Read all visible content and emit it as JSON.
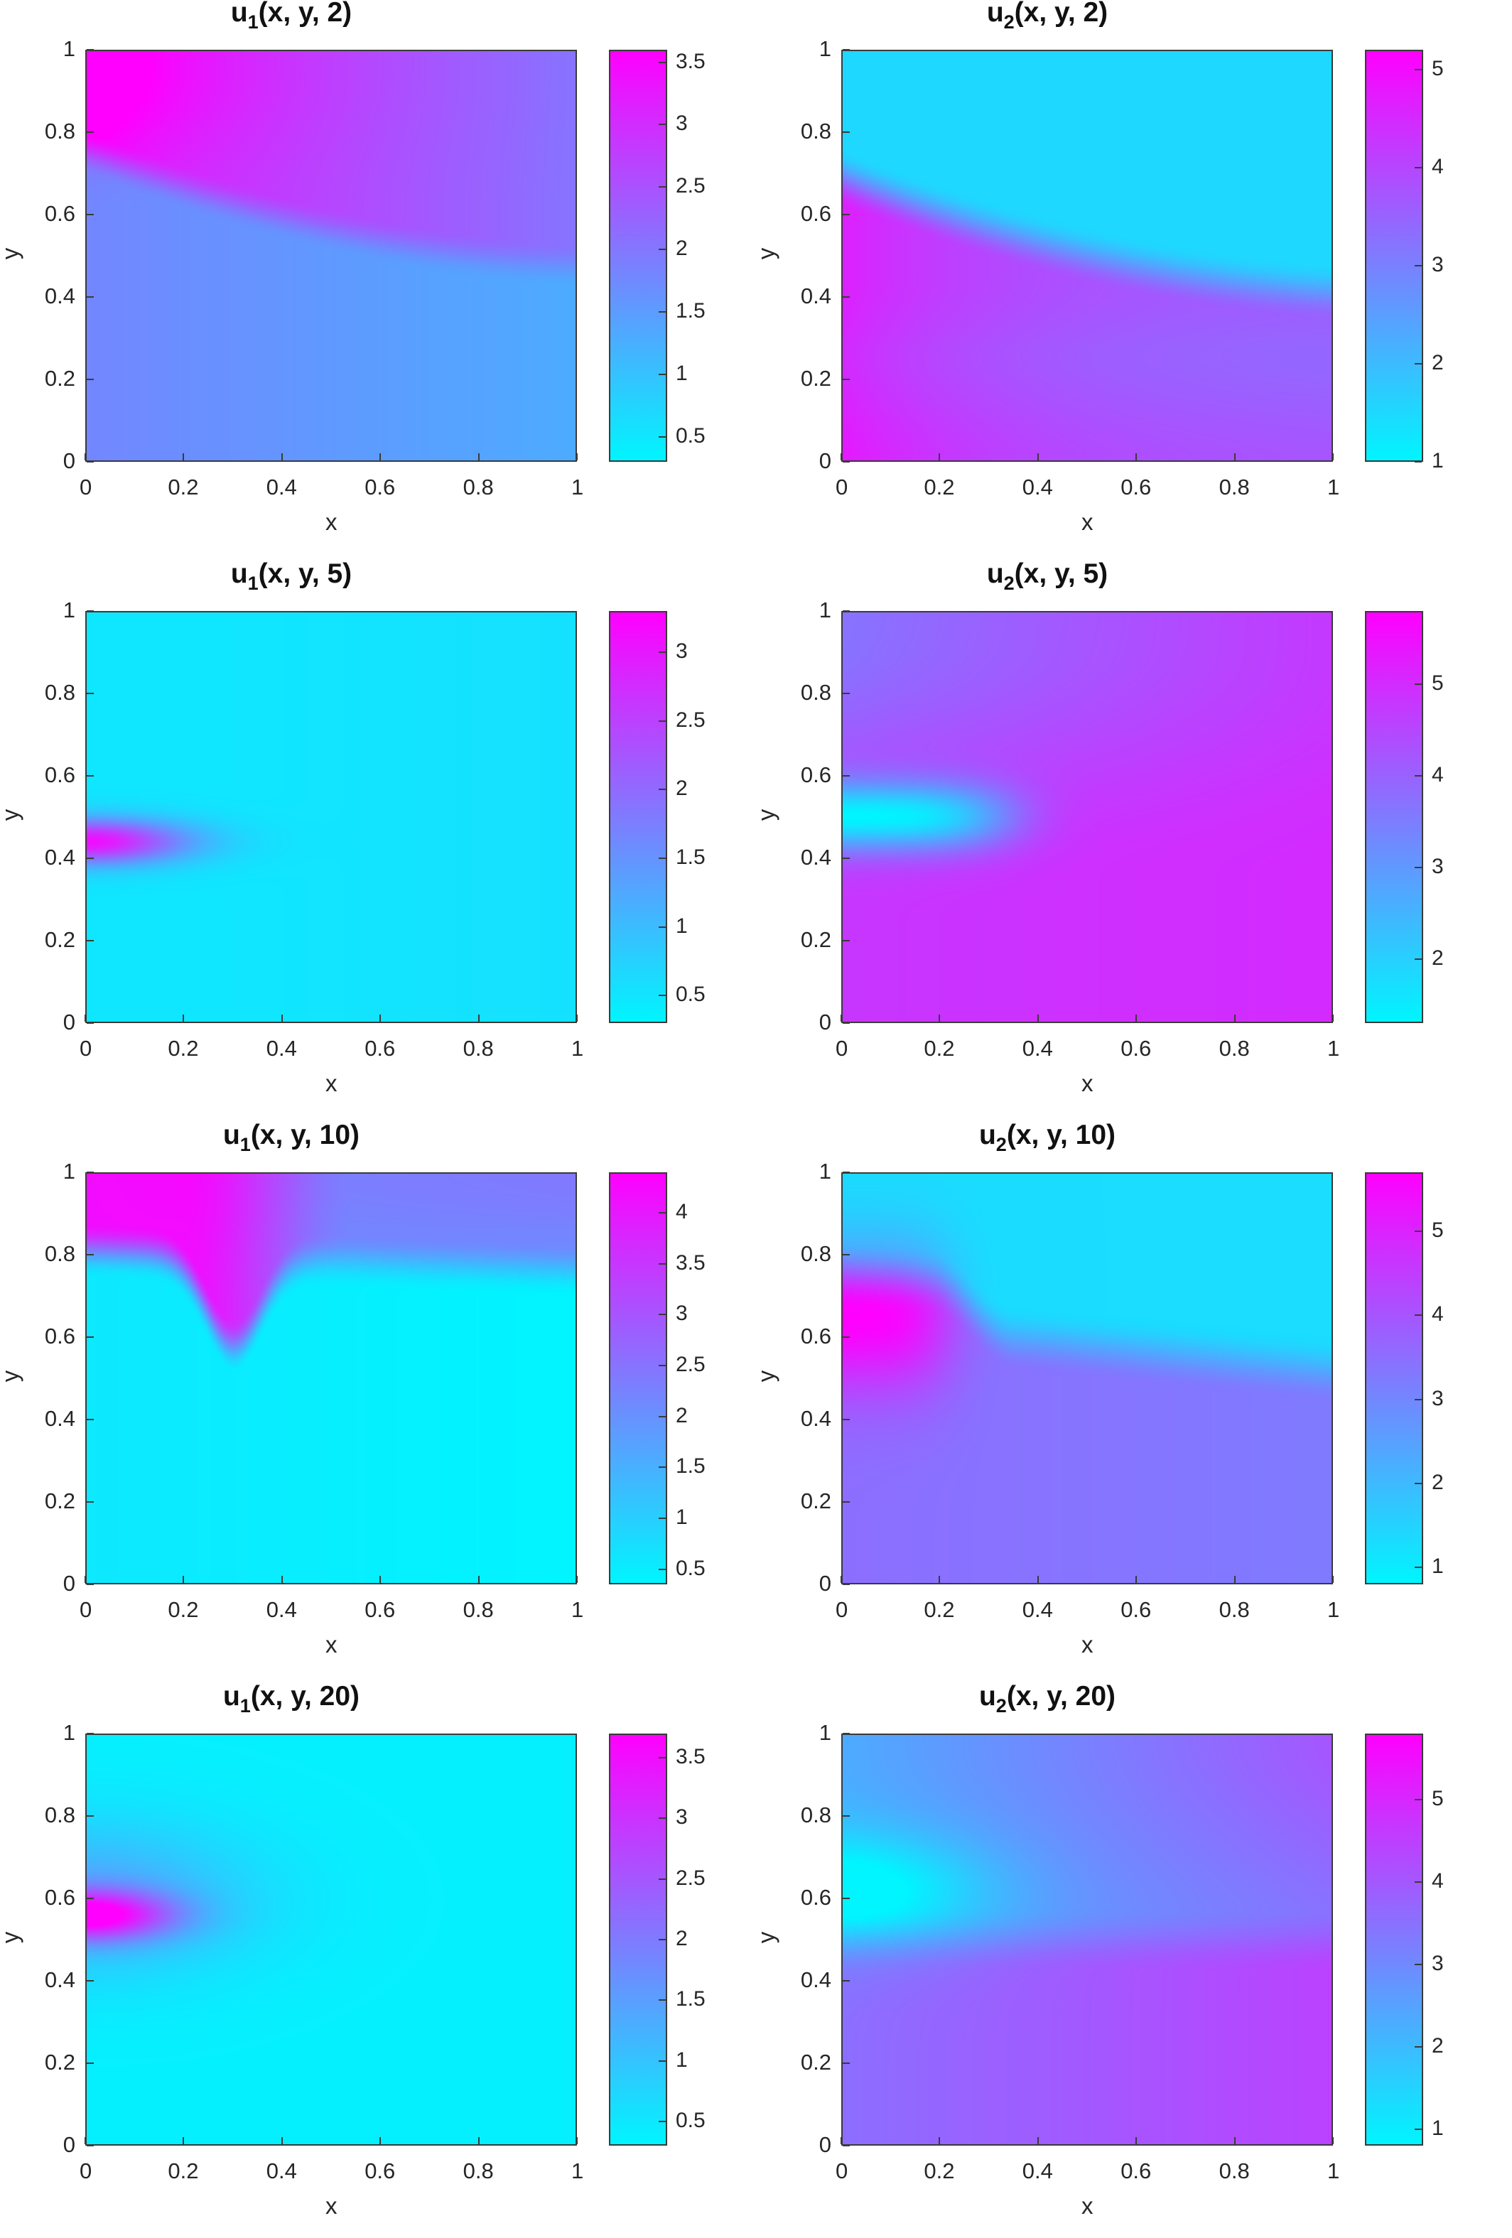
{
  "figure": {
    "colormap": {
      "low": "#00f5ff",
      "high": "#ff00ff"
    },
    "axis_tick_labels": {
      "x": [
        "0",
        "0.2",
        "0.4",
        "0.6",
        "0.8",
        "1"
      ],
      "y": [
        "0",
        "0.2",
        "0.4",
        "0.6",
        "0.8",
        "1"
      ]
    },
    "xlabel": "x",
    "ylabel": "y"
  },
  "chart_data": [
    {
      "type": "heatmap",
      "title_var": "u",
      "title_sub": "1",
      "title_args": "(x, y, 2)",
      "xlabel": "x",
      "ylabel": "y",
      "xlim": [
        0,
        1
      ],
      "ylim": [
        0,
        1
      ],
      "clim": [
        0.3,
        3.6
      ],
      "cbar_ticks": [
        "0.5",
        "1",
        "1.5",
        "2",
        "2.5",
        "3",
        "3.5"
      ],
      "cbar_values": [
        0.5,
        1,
        1.5,
        2,
        2.5,
        3,
        3.5
      ],
      "field": "u1_t2"
    },
    {
      "type": "heatmap",
      "title_var": "u",
      "title_sub": "2",
      "title_args": "(x, y, 2)",
      "xlabel": "x",
      "ylabel": "y",
      "xlim": [
        0,
        1
      ],
      "ylim": [
        0,
        1
      ],
      "clim": [
        1,
        5.2
      ],
      "cbar_ticks": [
        "1",
        "2",
        "3",
        "4",
        "5"
      ],
      "cbar_values": [
        1,
        2,
        3,
        4,
        5
      ],
      "field": "u2_t2"
    },
    {
      "type": "heatmap",
      "title_var": "u",
      "title_sub": "1",
      "title_args": "(x, y, 5)",
      "xlabel": "x",
      "ylabel": "y",
      "xlim": [
        0,
        1
      ],
      "ylim": [
        0,
        1
      ],
      "clim": [
        0.3,
        3.3
      ],
      "cbar_ticks": [
        "0.5",
        "1",
        "1.5",
        "2",
        "2.5",
        "3"
      ],
      "cbar_values": [
        0.5,
        1,
        1.5,
        2,
        2.5,
        3
      ],
      "field": "u1_t5"
    },
    {
      "type": "heatmap",
      "title_var": "u",
      "title_sub": "2",
      "title_args": "(x, y, 5)",
      "xlabel": "x",
      "ylabel": "y",
      "xlim": [
        0,
        1
      ],
      "ylim": [
        0,
        1
      ],
      "clim": [
        1.3,
        5.8
      ],
      "cbar_ticks": [
        "2",
        "3",
        "4",
        "5"
      ],
      "cbar_values": [
        2,
        3,
        4,
        5
      ],
      "field": "u2_t5"
    },
    {
      "type": "heatmap",
      "title_var": "u",
      "title_sub": "1",
      "title_args": "(x, y, 10)",
      "xlabel": "x",
      "ylabel": "y",
      "xlim": [
        0,
        1
      ],
      "ylim": [
        0,
        1
      ],
      "clim": [
        0.35,
        4.4
      ],
      "cbar_ticks": [
        "0.5",
        "1",
        "1.5",
        "2",
        "2.5",
        "3",
        "3.5",
        "4"
      ],
      "cbar_values": [
        0.5,
        1,
        1.5,
        2,
        2.5,
        3,
        3.5,
        4
      ],
      "field": "u1_t10"
    },
    {
      "type": "heatmap",
      "title_var": "u",
      "title_sub": "2",
      "title_args": "(x, y, 10)",
      "xlabel": "x",
      "ylabel": "y",
      "xlim": [
        0,
        1
      ],
      "ylim": [
        0,
        1
      ],
      "clim": [
        0.8,
        5.7
      ],
      "cbar_ticks": [
        "1",
        "2",
        "3",
        "4",
        "5"
      ],
      "cbar_values": [
        1,
        2,
        3,
        4,
        5
      ],
      "field": "u2_t10"
    },
    {
      "type": "heatmap",
      "title_var": "u",
      "title_sub": "1",
      "title_args": "(x, y, 20)",
      "xlabel": "x",
      "ylabel": "y",
      "xlim": [
        0,
        1
      ],
      "ylim": [
        0,
        1
      ],
      "clim": [
        0.3,
        3.7
      ],
      "cbar_ticks": [
        "0.5",
        "1",
        "1.5",
        "2",
        "2.5",
        "3",
        "3.5"
      ],
      "cbar_values": [
        0.5,
        1,
        1.5,
        2,
        2.5,
        3,
        3.5
      ],
      "field": "u1_t20"
    },
    {
      "type": "heatmap",
      "title_var": "u",
      "title_sub": "2",
      "title_args": "(x, y, 20)",
      "xlabel": "x",
      "ylabel": "y",
      "xlim": [
        0,
        1
      ],
      "ylim": [
        0,
        1
      ],
      "clim": [
        0.8,
        5.8
      ],
      "cbar_ticks": [
        "1",
        "2",
        "3",
        "4",
        "5"
      ],
      "cbar_values": [
        1,
        2,
        3,
        4,
        5
      ],
      "field": "u2_t20"
    }
  ]
}
